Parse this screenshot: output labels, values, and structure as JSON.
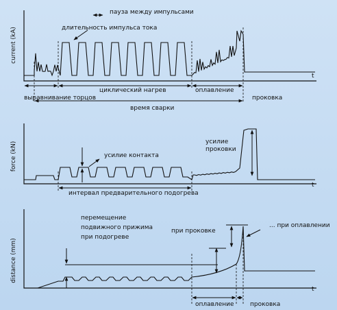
{
  "panels": [
    {
      "y_label": "current (kA)",
      "x_label": "t",
      "labels": {
        "pause": "пауза между импульсами",
        "pulse": "длительность импульса тока",
        "alignment": "выравнивание торцов",
        "cyclic_heating": "циклический нагрев",
        "flashing": "оплавление",
        "upset": "проковка",
        "welding_time": "время сварки"
      }
    },
    {
      "y_label": "force (kN)",
      "x_label": "t",
      "labels": {
        "contact_force": "усилие контакта",
        "upset_force": [
          "усилие",
          "проковки"
        ],
        "preheat_interval": "интервал предварительного подогрева"
      }
    },
    {
      "y_label": "distance (mm)",
      "x_label": "t",
      "labels": {
        "platen_travel": [
          "перемещение",
          "подвижного  прижима",
          "при подогреве"
        ],
        "at_upset": "при проковке",
        "at_flashing": "... при оплавлении",
        "flashing": "оплавление",
        "upset": "проковка"
      }
    }
  ]
}
